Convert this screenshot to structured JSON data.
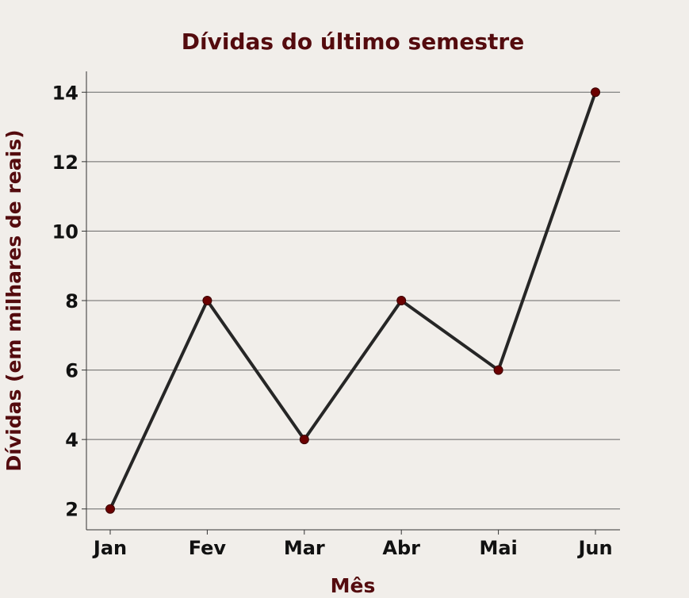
{
  "chart_data": {
    "type": "line",
    "title": "Dívidas do último semestre",
    "xlabel": "Mês",
    "ylabel": "Dívidas (em milhares de reais)",
    "categories": [
      "Jan",
      "Fev",
      "Mar",
      "Abr",
      "Mai",
      "Jun"
    ],
    "series": [
      {
        "values": [
          2,
          8,
          4,
          8,
          6,
          14
        ]
      }
    ],
    "ylim": [
      1.4,
      14.6
    ],
    "yticks": [
      2,
      4,
      6,
      8,
      10,
      12,
      14
    ],
    "ytick_labels": [
      "2",
      "4",
      "6",
      "8",
      "10",
      "12",
      "14"
    ],
    "grid": "horizontal",
    "colors": {
      "background": "#f1eeea",
      "title": "#540b0e",
      "axis_label": "#540b0e",
      "tick_label": "#111111",
      "line": "#262626",
      "marker": "#6b0000",
      "grid": "#666666",
      "axis": "#333333"
    }
  }
}
